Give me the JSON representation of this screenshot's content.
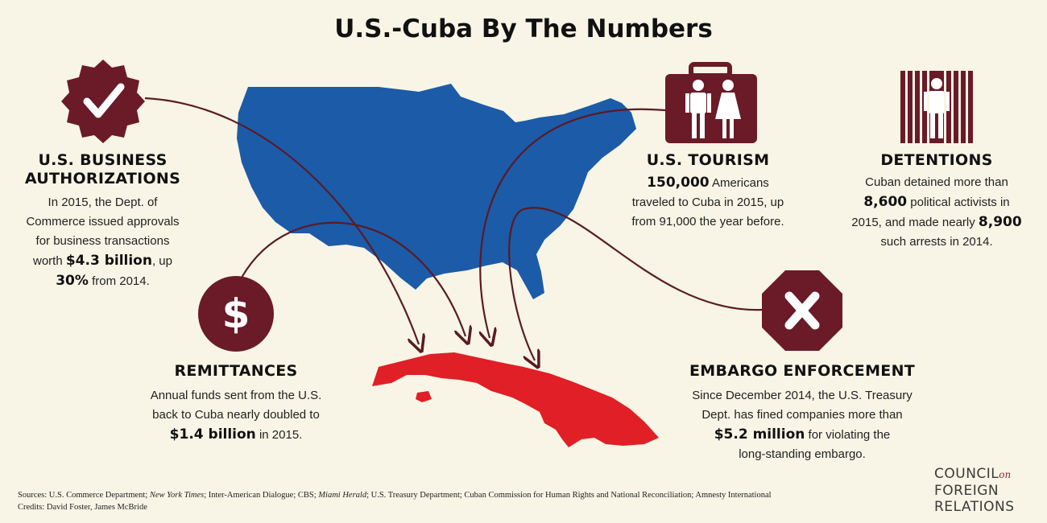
{
  "title": "U.S.-Cuba By The Numbers",
  "colors": {
    "maroon": "#6b1a28",
    "usa": "#1c5ba8",
    "cuba": "#e01f26",
    "background": "#f8f5e6"
  },
  "business": {
    "icon": "checkmark-badge-icon",
    "heading_1": "U.S. BUSINESS",
    "heading_2": "AUTHORIZATIONS",
    "line1": "In 2015, the Dept. of",
    "line2": "Commerce issued approvals",
    "line3": "for business transactions",
    "line4_pre": "worth ",
    "line4_big": "$4.3 billion",
    "line4_post": ", up",
    "line5_big": "30%",
    "line5_post": " from 2014."
  },
  "remittances": {
    "icon": "dollar-circle-icon",
    "icon_glyph": "$",
    "heading": "REMITTANCES",
    "line1": "Annual funds sent from the U.S.",
    "line2": "back to Cuba nearly doubled to",
    "line3_big": "$1.4 billion",
    "line3_post": " in 2015."
  },
  "tourism": {
    "icon": "suitcase-travelers-icon",
    "heading": "U.S. TOURISM",
    "line1_big": "150,000",
    "line1_post": " Americans",
    "line2": "traveled to Cuba in 2015, up",
    "line3": "from 91,000 the year before."
  },
  "detentions": {
    "icon": "prisoner-bars-icon",
    "heading": "DETENTIONS",
    "line1": "Cuban detained more than",
    "line2_big": "8,600",
    "line2_post": " political activists in",
    "line3_pre": "2015, and made nearly ",
    "line3_big": "8,900",
    "line4": "such arrests in 2014."
  },
  "embargo": {
    "icon": "x-octagon-icon",
    "heading": "EMBARGO ENFORCEMENT",
    "line1": "Since December 2014, the U.S. Treasury",
    "line2": "Dept. has fined companies more than",
    "line3_big": "$5.2 million",
    "line3_post": " for violating the",
    "line4": "long-standing embargo."
  },
  "sources": {
    "label": "Sources:  U.S. Commerce Department; ",
    "s1": "New York Times",
    "s2": "; Inter-American Dialogue; CBS; ",
    "s3": "Miami Herald",
    "s4": "; U.S. Treasury Department; Cuban Commission for Human Rights and National Reconciliation; Amnesty International",
    "credits": "Credits: David Foster, James McBride"
  },
  "logo": {
    "line1": "COUNCIL",
    "line1_suffix": "on",
    "line2": "FOREIGN",
    "line3": "RELATIONS"
  }
}
